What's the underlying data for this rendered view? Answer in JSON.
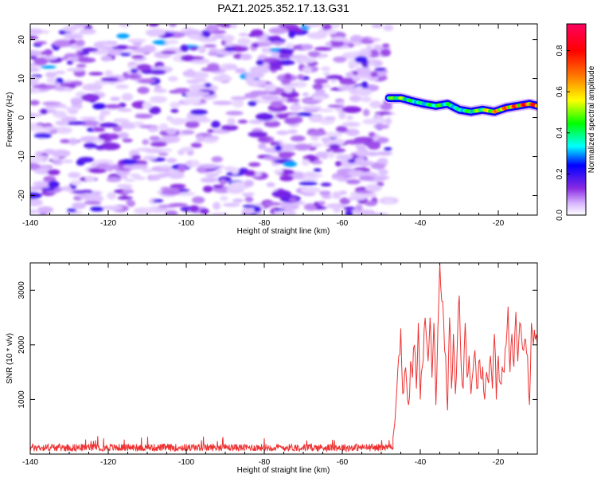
{
  "title": "PAZ1.2025.352.17.13.G31",
  "chart_data": [
    {
      "type": "heatmap",
      "title": "PAZ1.2025.352.17.13.G31",
      "xlabel": "Height of straight line (km)",
      "ylabel": "Frequency (Hz)",
      "xlim": [
        -140,
        -10
      ],
      "ylim": [
        -25,
        24
      ],
      "x_ticks": [
        "-140",
        "-120",
        "-100",
        "-80",
        "-60",
        "-40",
        "-20"
      ],
      "y_ticks": [
        "-20",
        "-10",
        "0",
        "10",
        "20"
      ],
      "colorbar": {
        "label": "Normalized spectral amplitude",
        "range": [
          0,
          0.93
        ],
        "ticks": [
          "0.0",
          "0.2",
          "0.4",
          "0.6",
          "0.8"
        ],
        "colors": [
          "#ffffff",
          "#d8b8ff",
          "#8a2be2",
          "#0000ff",
          "#00ffff",
          "#00ff00",
          "#ffff00",
          "#ff8000",
          "#ff0000",
          "#ff0060"
        ]
      },
      "noise_region_x": [
        -140,
        -48
      ],
      "signal_ridge": {
        "x": [
          -48,
          -45,
          -42,
          -39,
          -36,
          -33,
          -30,
          -27,
          -24,
          -21,
          -18,
          -15,
          -12,
          -10
        ],
        "frequency": [
          5.0,
          5.0,
          4.2,
          3.5,
          3.0,
          3.5,
          2.0,
          1.5,
          2.0,
          1.5,
          2.5,
          3.0,
          3.5,
          3.0
        ],
        "amplitude": [
          0.5,
          0.55,
          0.45,
          0.4,
          0.5,
          0.45,
          0.4,
          0.5,
          0.55,
          0.7,
          0.75,
          0.8,
          0.85,
          0.8
        ]
      }
    },
    {
      "type": "line",
      "xlabel": "Height of straight line (km)",
      "ylabel": "SNR (10 * v/v)",
      "xlim": [
        -140,
        -10
      ],
      "ylim": [
        0,
        3500
      ],
      "x_ticks": [
        "-140",
        "-120",
        "-100",
        "-80",
        "-60",
        "-40",
        "-20"
      ],
      "y_ticks": [
        "1000",
        "2000",
        "3000"
      ],
      "series": [
        {
          "name": "SNR",
          "color": "#ee3333",
          "noise_floor": {
            "x_range": [
              -140,
              -47
            ],
            "baseline": 150,
            "peak_max": 330
          },
          "x": [
            -47,
            -46,
            -45.5,
            -45,
            -44.5,
            -44,
            -43.5,
            -43,
            -42.5,
            -42,
            -41.5,
            -41,
            -40.5,
            -40,
            -39.5,
            -39,
            -38.5,
            -38,
            -37.5,
            -37,
            -36.5,
            -36,
            -35.5,
            -35,
            -34.5,
            -34,
            -33.5,
            -33,
            -32.5,
            -32,
            -31.5,
            -31,
            -30.5,
            -30,
            -29.5,
            -29,
            -28.5,
            -28,
            -27.5,
            -27,
            -26.5,
            -26,
            -25.5,
            -25,
            -24.5,
            -24,
            -23.5,
            -23,
            -22.5,
            -22,
            -21.5,
            -21,
            -20.5,
            -20,
            -19.5,
            -19,
            -18.5,
            -18,
            -17.5,
            -17,
            -16.5,
            -16,
            -15.5,
            -15,
            -14.5,
            -14,
            -13.5,
            -13,
            -12.5,
            -12,
            -11.5,
            -11,
            -10.5,
            -10
          ],
          "y": [
            300,
            1200,
            1800,
            2300,
            1100,
            1500,
            1300,
            900,
            1700,
            1400,
            2000,
            1200,
            2400,
            1000,
            1600,
            2300,
            2200,
            1700,
            2500,
            1400,
            2400,
            900,
            2300,
            3500,
            2800,
            2400,
            1800,
            800,
            2500,
            1200,
            2200,
            1100,
            2000,
            2900,
            1600,
            1200,
            2400,
            1400,
            1800,
            1100,
            1500,
            1900,
            1200,
            1700,
            1400,
            1600,
            1000,
            1500,
            1300,
            1800,
            1200,
            2200,
            1000,
            1800,
            1300,
            1600,
            1500,
            2000,
            2700,
            1500,
            2200,
            1600,
            2600,
            1700,
            2400,
            2100,
            1900,
            2100,
            1800,
            900,
            2400,
            2000,
            2100,
            2000
          ]
        }
      ]
    }
  ]
}
